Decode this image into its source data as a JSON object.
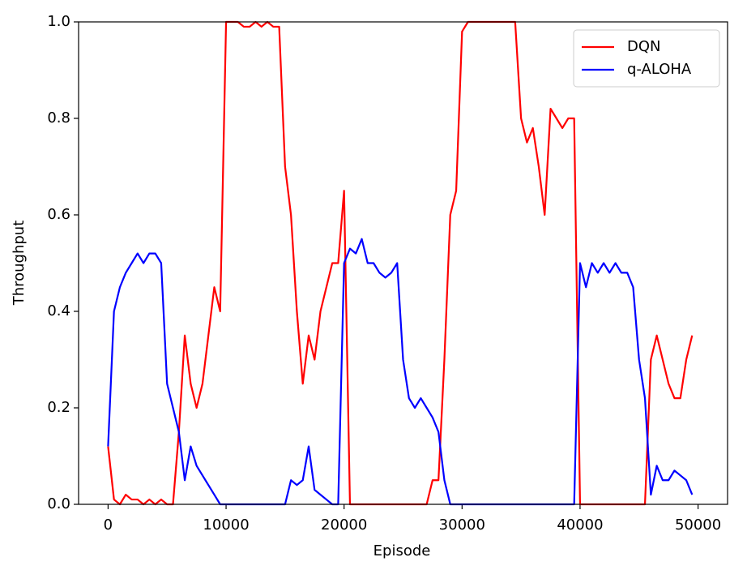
{
  "chart_data": {
    "type": "line",
    "xlabel": "Episode",
    "ylabel": "Throughput",
    "x": [
      0,
      500,
      1000,
      1500,
      2000,
      2500,
      3000,
      3500,
      4000,
      4500,
      5000,
      5500,
      6000,
      6500,
      7000,
      7500,
      8000,
      8500,
      9000,
      9500,
      10000,
      10500,
      11000,
      11500,
      12000,
      12500,
      13000,
      13500,
      14000,
      14500,
      15000,
      15500,
      16000,
      16500,
      17000,
      17500,
      18000,
      18500,
      19000,
      19500,
      20000,
      20500,
      21000,
      21500,
      22000,
      22500,
      23000,
      23500,
      24000,
      24500,
      25000,
      25500,
      26000,
      26500,
      27000,
      27500,
      28000,
      28500,
      29000,
      29500,
      30000,
      30500,
      31000,
      31500,
      32000,
      32500,
      33000,
      33500,
      34000,
      34500,
      35000,
      35500,
      36000,
      36500,
      37000,
      37500,
      38000,
      38500,
      39000,
      39500,
      40000,
      40500,
      41000,
      41500,
      42000,
      42500,
      43000,
      43500,
      44000,
      44500,
      45000,
      45500,
      46000,
      46500,
      47000,
      47500,
      48000,
      48500,
      49000,
      49500
    ],
    "series": [
      {
        "name": "DQN",
        "color": "#ff0000",
        "values": [
          0.12,
          0.01,
          0,
          0.02,
          0.01,
          0.01,
          0,
          0.01,
          0,
          0.01,
          0,
          0,
          0.15,
          0.35,
          0.25,
          0.2,
          0.25,
          0.35,
          0.45,
          0.4,
          1,
          1,
          1,
          0.99,
          0.99,
          1,
          0.99,
          1,
          0.99,
          0.99,
          0.7,
          0.6,
          0.4,
          0.25,
          0.35,
          0.3,
          0.4,
          0.45,
          0.5,
          0.5,
          0.65,
          0,
          0,
          0,
          0,
          0,
          0,
          0,
          0,
          0,
          0,
          0,
          0,
          0,
          0,
          0.05,
          0.05,
          0.3,
          0.6,
          0.65,
          0.98,
          1,
          1,
          1,
          1,
          1,
          1,
          1,
          1,
          1,
          0.8,
          0.75,
          0.78,
          0.7,
          0.6,
          0.82,
          0.8,
          0.78,
          0.8,
          0.8,
          0,
          0,
          0,
          0,
          0,
          0,
          0,
          0,
          0,
          0,
          0,
          0,
          0.3,
          0.35,
          0.3,
          0.25,
          0.22,
          0.22,
          0.3,
          0.35
        ]
      },
      {
        "name": "q-ALOHA",
        "color": "#0000ff",
        "values": [
          0.12,
          0.4,
          0.45,
          0.48,
          0.5,
          0.52,
          0.5,
          0.52,
          0.52,
          0.5,
          0.25,
          0.2,
          0.15,
          0.05,
          0.12,
          0.08,
          0.06,
          0.04,
          0.02,
          0,
          0,
          0,
          0,
          0,
          0,
          0,
          0,
          0,
          0,
          0,
          0,
          0.05,
          0.04,
          0.05,
          0.12,
          0.03,
          0.02,
          0.01,
          0,
          0,
          0.5,
          0.53,
          0.52,
          0.55,
          0.5,
          0.5,
          0.48,
          0.47,
          0.48,
          0.5,
          0.3,
          0.22,
          0.2,
          0.22,
          0.2,
          0.18,
          0.15,
          0.05,
          0,
          0,
          0,
          0,
          0,
          0,
          0,
          0,
          0,
          0,
          0,
          0,
          0,
          0,
          0,
          0,
          0,
          0,
          0,
          0,
          0,
          0,
          0.5,
          0.45,
          0.5,
          0.48,
          0.5,
          0.48,
          0.5,
          0.48,
          0.48,
          0.45,
          0.3,
          0.22,
          0.02,
          0.08,
          0.05,
          0.05,
          0.07,
          0.06,
          0.05,
          0.02
        ]
      }
    ],
    "xlim": [
      -2500,
      52500
    ],
    "xticks": [
      0,
      10000,
      20000,
      30000,
      40000,
      50000
    ],
    "ylim": [
      0,
      1
    ],
    "yticks": [
      {
        "value": 0,
        "label": "0.0"
      },
      0.2,
      0.4,
      0.6,
      0.8,
      {
        "value": 1,
        "label": "1.0"
      }
    ],
    "legend": "upper right"
  }
}
